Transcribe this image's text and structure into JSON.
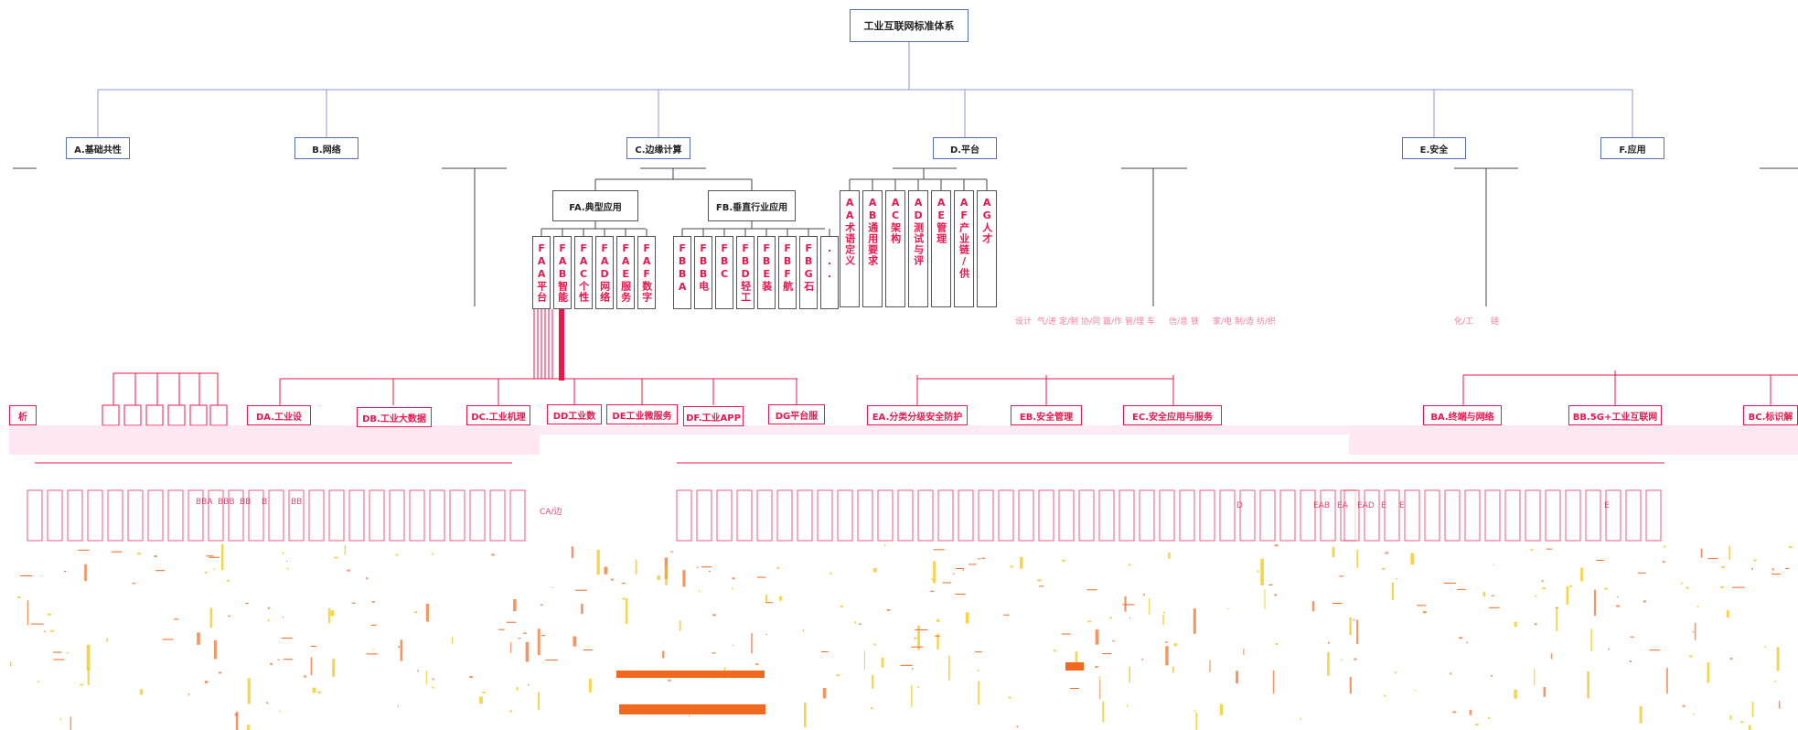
{
  "colors": {
    "blue_line": "#8a9ad6",
    "dark_line": "#444444",
    "pink": "#e8174f",
    "orange": "#ef6a1f",
    "yellow": "#f2c200"
  },
  "root": {
    "label": "工业互联网标准体系"
  },
  "level1": [
    {
      "key": "A",
      "label": "A.基础共性"
    },
    {
      "key": "B",
      "label": "B.网络"
    },
    {
      "key": "C",
      "label": "C.边缘计算"
    },
    {
      "key": "D",
      "label": "D.平台"
    },
    {
      "key": "E",
      "label": "E.安全"
    },
    {
      "key": "F",
      "label": "F.应用"
    }
  ],
  "level2_F": [
    {
      "label": "FA.典型应用"
    },
    {
      "label": "FB.垂直行业应用"
    }
  ],
  "fa_items": [
    "FAA平台",
    "FAB智能",
    "FAC个性",
    "FAD网络",
    "FAE服务",
    "FAF数字"
  ],
  "fb_items": [
    "FBBA",
    "FBB电",
    "FBC",
    "FBD轻工",
    "FBE装",
    "FBF航",
    "FBG石",
    "..."
  ],
  "a_items": [
    "AA术语定义",
    "AB通用要求",
    "AC架构",
    "AD测试与评",
    "AE管理",
    "AF产业链/供",
    "AG人才"
  ],
  "level3_D": [
    {
      "label": "DA.工业设"
    },
    {
      "label": "DB.工业大数据"
    },
    {
      "label": "DC.工业机理"
    },
    {
      "label": "DD工业数"
    },
    {
      "label": "DE工业微服务"
    },
    {
      "label": "DF.工业APP"
    },
    {
      "label": "DG平台服"
    }
  ],
  "level3_E": [
    {
      "label": "EA.分类分级安全防护"
    },
    {
      "label": "EB.安全管理"
    },
    {
      "label": "EC.安全应用与服务"
    }
  ],
  "level3_B": [
    {
      "label": "BA.终端与网络"
    },
    {
      "label": "BB.5G+工业互联网"
    },
    {
      "label": "BC.标识解"
    }
  ],
  "left_edge": {
    "label": "析"
  },
  "faint_text": [
    "设计",
    "气/进",
    "定/制",
    "协/同",
    "篇/作",
    "管/理",
    "车",
    "信/息",
    "铁",
    "家/电",
    "制/造",
    "纺/织",
    "化/工",
    "链"
  ],
  "deep_letters": [
    "BBA",
    "BBB",
    "BB",
    "B",
    "BB",
    "CA/边",
    "EAB",
    "EA",
    "EAD",
    "E",
    "E",
    "D",
    "E"
  ]
}
